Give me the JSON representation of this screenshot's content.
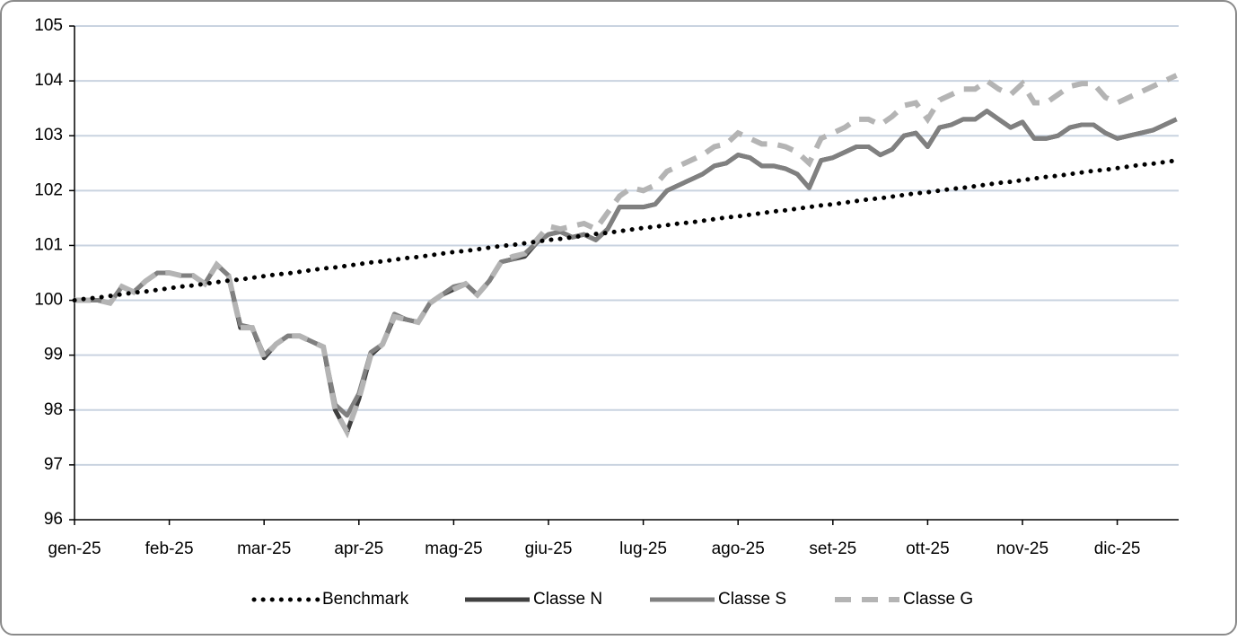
{
  "chart_data": {
    "type": "line",
    "categories": [
      "gen-25",
      null,
      null,
      null,
      null,
      null,
      null,
      null,
      "feb-25",
      null,
      null,
      null,
      null,
      null,
      null,
      null,
      "mar-25",
      null,
      null,
      null,
      null,
      null,
      null,
      null,
      "apr-25",
      null,
      null,
      null,
      null,
      null,
      null,
      null,
      "mag-25",
      null,
      null,
      null,
      null,
      null,
      null,
      null,
      "giu-25",
      null,
      null,
      null,
      null,
      null,
      null,
      null,
      "lug-25",
      null,
      null,
      null,
      null,
      null,
      null,
      null,
      "ago-25",
      null,
      null,
      null,
      null,
      null,
      null,
      null,
      "set-25",
      null,
      null,
      null,
      null,
      null,
      null,
      null,
      "ott-25",
      null,
      null,
      null,
      null,
      null,
      null,
      null,
      "nov-25",
      null,
      null,
      null,
      null,
      null,
      null,
      null,
      "dic-25",
      null,
      null,
      null,
      null,
      null
    ],
    "series": [
      {
        "name": "Benchmark",
        "color": "#000000",
        "style": "dotted",
        "values": [
          100,
          100.03,
          100.05,
          100.08,
          100.11,
          100.14,
          100.16,
          100.19,
          100.22,
          100.25,
          100.27,
          100.3,
          100.33,
          100.36,
          100.38,
          100.41,
          100.44,
          100.47,
          100.49,
          100.52,
          100.55,
          100.58,
          100.6,
          100.63,
          100.66,
          100.69,
          100.71,
          100.74,
          100.77,
          100.79,
          100.82,
          100.85,
          100.88,
          100.9,
          100.93,
          100.96,
          100.99,
          101.01,
          101.04,
          101.07,
          101.1,
          101.12,
          101.15,
          101.18,
          101.21,
          101.23,
          101.26,
          101.29,
          101.32,
          101.34,
          101.37,
          101.4,
          101.42,
          101.45,
          101.48,
          101.51,
          101.53,
          101.56,
          101.59,
          101.62,
          101.64,
          101.67,
          101.7,
          101.73,
          101.75,
          101.78,
          101.81,
          101.84,
          101.86,
          101.89,
          101.92,
          101.95,
          101.97,
          102,
          102.03,
          102.05,
          102.08,
          102.11,
          102.14,
          102.16,
          102.19,
          102.22,
          102.25,
          102.27,
          102.3,
          102.33,
          102.36,
          102.38,
          102.41,
          102.44,
          102.47,
          102.49,
          102.52,
          102.55
        ]
      },
      {
        "name": "Classe N",
        "color": "#404040",
        "style": "solid",
        "values": [
          100,
          100,
          100,
          99.95,
          100.25,
          100.15,
          100.35,
          100.5,
          100.5,
          100.45,
          100.45,
          100.3,
          100.65,
          100.45,
          99.5,
          99.5,
          98.95,
          99.2,
          99.35,
          99.35,
          99.25,
          99.15,
          98.0,
          97.6,
          98.2,
          99.0,
          99.2,
          99.7,
          99.65,
          99.6,
          99.95,
          100.1,
          100.2,
          100.3,
          100.1,
          100.35,
          100.7,
          100.75,
          100.8,
          101.05,
          101.2,
          101.25,
          101.15,
          101.2,
          101.1,
          101.3,
          101.7,
          101.7,
          101.7,
          101.75,
          102.0,
          102.1,
          102.2,
          102.3,
          102.45,
          102.5,
          102.65,
          102.6,
          102.45,
          102.45,
          102.4,
          102.3,
          102.05,
          102.55,
          102.6,
          102.7,
          102.8,
          102.8,
          102.65,
          102.75,
          103.0,
          103.05,
          102.8,
          103.15,
          103.2,
          103.3,
          103.3,
          103.45,
          103.3,
          103.15,
          103.25,
          102.95,
          102.95,
          103.0,
          103.15,
          103.2,
          103.2,
          103.05,
          102.95,
          103.0,
          103.05,
          103.1,
          103.2,
          103.3
        ]
      },
      {
        "name": "Classe S",
        "color": "#808080",
        "style": "solid",
        "values": [
          100,
          100,
          100,
          99.95,
          100.25,
          100.15,
          100.35,
          100.5,
          100.5,
          100.45,
          100.45,
          100.3,
          100.65,
          100.45,
          99.55,
          99.5,
          99.0,
          99.2,
          99.35,
          99.35,
          99.25,
          99.15,
          98.1,
          97.9,
          98.3,
          99.05,
          99.2,
          99.75,
          99.65,
          99.6,
          99.95,
          100.1,
          100.25,
          100.3,
          100.1,
          100.35,
          100.7,
          100.75,
          100.85,
          101.05,
          101.2,
          101.25,
          101.15,
          101.2,
          101.1,
          101.3,
          101.7,
          101.7,
          101.7,
          101.75,
          102.0,
          102.1,
          102.2,
          102.3,
          102.45,
          102.5,
          102.65,
          102.6,
          102.45,
          102.45,
          102.4,
          102.3,
          102.05,
          102.55,
          102.6,
          102.7,
          102.8,
          102.8,
          102.65,
          102.75,
          103.0,
          103.05,
          102.8,
          103.15,
          103.2,
          103.3,
          103.3,
          103.45,
          103.3,
          103.15,
          103.25,
          102.95,
          102.95,
          103.0,
          103.15,
          103.2,
          103.2,
          103.05,
          102.95,
          103.0,
          103.05,
          103.1,
          103.2,
          103.3
        ]
      },
      {
        "name": "Classe G",
        "color": "#b4b4b4",
        "style": "dashed",
        "values": [
          100,
          100,
          100,
          99.95,
          100.25,
          100.15,
          100.35,
          100.5,
          100.5,
          100.45,
          100.45,
          100.3,
          100.65,
          100.45,
          99.5,
          99.5,
          98.95,
          99.2,
          99.35,
          99.35,
          99.25,
          99.15,
          98.0,
          97.6,
          98.2,
          99.0,
          99.2,
          99.7,
          99.65,
          99.6,
          99.95,
          100.1,
          100.2,
          100.3,
          100.1,
          100.35,
          100.7,
          100.8,
          100.85,
          101.1,
          101.35,
          101.3,
          101.35,
          101.4,
          101.3,
          101.6,
          101.9,
          102.05,
          102.0,
          102.1,
          102.35,
          102.45,
          102.55,
          102.65,
          102.8,
          102.85,
          103.05,
          102.95,
          102.85,
          102.85,
          102.8,
          102.7,
          102.5,
          102.95,
          103.05,
          103.15,
          103.3,
          103.3,
          103.2,
          103.35,
          103.55,
          103.6,
          103.3,
          103.65,
          103.75,
          103.85,
          103.85,
          104.0,
          103.85,
          103.75,
          103.95,
          103.6,
          103.6,
          103.75,
          103.9,
          103.95,
          103.95,
          103.7,
          103.6,
          103.7,
          103.8,
          103.9,
          104.0,
          104.1
        ]
      }
    ],
    "ylim": [
      96,
      105
    ],
    "yticks": [
      96,
      97,
      98,
      99,
      100,
      101,
      102,
      103,
      104,
      105
    ],
    "grid": true,
    "legend": "bottom"
  }
}
